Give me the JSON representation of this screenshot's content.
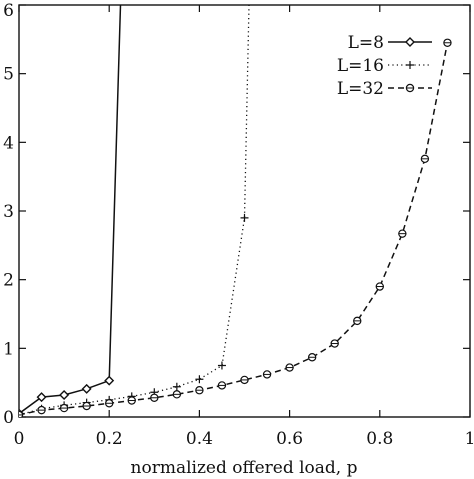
{
  "chart_data": {
    "type": "line",
    "xlabel": "normalized offered load, p",
    "ylabel": "",
    "xlim": [
      0,
      1
    ],
    "ylim": [
      0,
      6
    ],
    "xticks": [
      {
        "value": 0,
        "label": "0"
      },
      {
        "value": 0.2,
        "label": "0.2"
      },
      {
        "value": 0.4,
        "label": "0.4"
      },
      {
        "value": 0.6,
        "label": "0.6"
      },
      {
        "value": 0.8,
        "label": "0.8"
      },
      {
        "value": 1,
        "label": "1"
      }
    ],
    "yticks": [
      {
        "value": 0,
        "label": "0"
      },
      {
        "value": 1,
        "label": "1"
      },
      {
        "value": 2,
        "label": "2"
      },
      {
        "value": 3,
        "label": "3"
      },
      {
        "value": 4,
        "label": "4"
      },
      {
        "value": 5,
        "label": "5"
      },
      {
        "value": 6,
        "label": "6"
      }
    ],
    "grid": false,
    "legend_position": "top-right",
    "series": [
      {
        "name": "L=8",
        "style": "solid",
        "marker": "diamond",
        "color": "#111111",
        "x": [
          0,
          0.05,
          0.1,
          0.15,
          0.2,
          0.225
        ],
        "y": [
          0.05,
          0.29,
          0.32,
          0.41,
          0.53,
          6.0
        ]
      },
      {
        "name": "L=16",
        "style": "dotted",
        "marker": "plus",
        "color": "#111111",
        "x": [
          0,
          0.05,
          0.1,
          0.15,
          0.2,
          0.25,
          0.3,
          0.35,
          0.4,
          0.45,
          0.5,
          0.51
        ],
        "y": [
          0.03,
          0.12,
          0.17,
          0.21,
          0.25,
          0.3,
          0.36,
          0.44,
          0.55,
          0.75,
          2.9,
          6.0
        ]
      },
      {
        "name": "L=32",
        "style": "dashed",
        "marker": "circle-cross",
        "color": "#111111",
        "x": [
          0,
          0.05,
          0.1,
          0.15,
          0.2,
          0.25,
          0.3,
          0.35,
          0.4,
          0.45,
          0.5,
          0.55,
          0.6,
          0.65,
          0.7,
          0.75,
          0.8,
          0.85,
          0.9,
          0.95
        ],
        "y": [
          0.03,
          0.1,
          0.13,
          0.16,
          0.2,
          0.24,
          0.28,
          0.33,
          0.39,
          0.46,
          0.54,
          0.62,
          0.72,
          0.87,
          1.07,
          1.4,
          1.9,
          2.67,
          3.76,
          5.45
        ]
      }
    ]
  }
}
